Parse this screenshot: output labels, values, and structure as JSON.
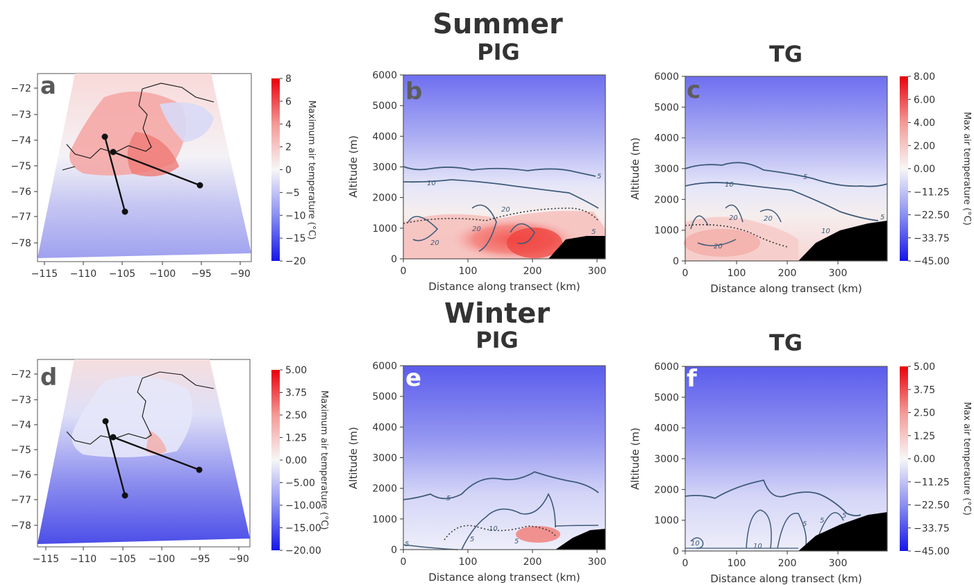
{
  "figure": {
    "summer_title": "Summer",
    "winter_title": "Winter"
  },
  "chart_data": [
    {
      "id": "a",
      "type": "heatmap",
      "season": "Summer",
      "panel_label": "a",
      "xticks": [
        "−115",
        "−110",
        "−105",
        "−100",
        "−95",
        "−90"
      ],
      "yticks": [
        "−72",
        "−73",
        "−74",
        "−75",
        "−76",
        "−77",
        "−78"
      ],
      "xlim": [
        -116,
        -89
      ],
      "ylim": [
        -78.7,
        -71.6
      ],
      "transects": [
        {
          "from": [
            -107,
            -73.9
          ],
          "to": [
            -104.4,
            -76.8
          ]
        },
        {
          "from": [
            -106.3,
            -74.5
          ],
          "to": [
            -95,
            -75.8
          ]
        }
      ],
      "colorbar": {
        "ticks": [
          "8",
          "6",
          "4",
          "2",
          "0",
          "−5",
          "−10",
          "−15",
          "−20"
        ],
        "label": "Maximum air temperature (°C)"
      }
    },
    {
      "id": "b",
      "type": "heatmap",
      "season": "Summer",
      "title": "PIG",
      "panel_label": "b",
      "xlabel": "Distance along transect (km)",
      "ylabel": "Altitude (m)",
      "xticks": [
        "0",
        "100",
        "200",
        "300"
      ],
      "yticks": [
        "0",
        "1000",
        "2000",
        "3000",
        "4000",
        "5000",
        "6000"
      ],
      "xlim": [
        0,
        315
      ],
      "ylim": [
        0,
        6000
      ],
      "contour_labels": [
        "5",
        "10",
        "20",
        "20",
        "20",
        "5"
      ]
    },
    {
      "id": "c",
      "type": "heatmap",
      "season": "Summer",
      "title": "TG",
      "panel_label": "c",
      "xlabel": "Distance along transect (km)",
      "ylabel": "Altitude (m)",
      "xticks": [
        "0",
        "100",
        "200",
        "300"
      ],
      "yticks": [
        "0",
        "1000",
        "2000",
        "3000",
        "4000",
        "5000",
        "6000"
      ],
      "xlim": [
        0,
        395
      ],
      "ylim": [
        0,
        6000
      ],
      "contour_labels": [
        "5",
        "10",
        "20",
        "20",
        "20",
        "10",
        "5"
      ],
      "colorbar": {
        "ticks": [
          "8.00",
          "6.00",
          "4.00",
          "2.00",
          "0.00",
          "−11.25",
          "−22.50",
          "−33.75",
          "−45.00"
        ],
        "label": "Max air temperature (°C)"
      }
    },
    {
      "id": "d",
      "type": "heatmap",
      "season": "Winter",
      "panel_label": "d",
      "xticks": [
        "−115",
        "−110",
        "−105",
        "−100",
        "−95",
        "−90"
      ],
      "yticks": [
        "−72",
        "−73",
        "−74",
        "−75",
        "−76",
        "−77",
        "−78"
      ],
      "xlim": [
        -116,
        -89
      ],
      "ylim": [
        -78.7,
        -71.6
      ],
      "transects": [
        {
          "from": [
            -107,
            -73.9
          ],
          "to": [
            -104.4,
            -76.8
          ]
        },
        {
          "from": [
            -106.3,
            -74.5
          ],
          "to": [
            -95,
            -75.8
          ]
        }
      ],
      "colorbar": {
        "ticks": [
          "5.00",
          "3.75",
          "2.50",
          "1.25",
          "0.00",
          "−5.00",
          "−10.00",
          "−15.00",
          "−20.00"
        ],
        "label": "Maximum air temperature (°C)"
      }
    },
    {
      "id": "e",
      "type": "heatmap",
      "season": "Winter",
      "title": "PIG",
      "panel_label": "e",
      "xlabel": "Distance along transect (km)",
      "ylabel": "Altitude (m)",
      "xticks": [
        "0",
        "100",
        "200",
        "300"
      ],
      "yticks": [
        "0",
        "1000",
        "2000",
        "3000",
        "4000",
        "5000",
        "6000"
      ],
      "xlim": [
        0,
        315
      ],
      "ylim": [
        0,
        6000
      ],
      "contour_labels": [
        "5",
        "10",
        "5",
        "5",
        "5"
      ]
    },
    {
      "id": "f",
      "type": "heatmap",
      "season": "Winter",
      "title": "TG",
      "panel_label": "f",
      "xlabel": "Distance along transect (km)",
      "ylabel": "Altitude (m)",
      "xticks": [
        "0",
        "100",
        "200",
        "300"
      ],
      "yticks": [
        "0",
        "1000",
        "2000",
        "3000",
        "4000",
        "5000",
        "6000"
      ],
      "xlim": [
        0,
        395
      ],
      "ylim": [
        0,
        6000
      ],
      "contour_labels": [
        "10",
        "10",
        "5",
        "5",
        "5"
      ],
      "colorbar": {
        "ticks": [
          "5.00",
          "3.75",
          "2.50",
          "1.25",
          "0.00",
          "−11.25",
          "−22.50",
          "−33.75",
          "−45.00"
        ],
        "label": "Max air temperature (°C)"
      }
    }
  ]
}
